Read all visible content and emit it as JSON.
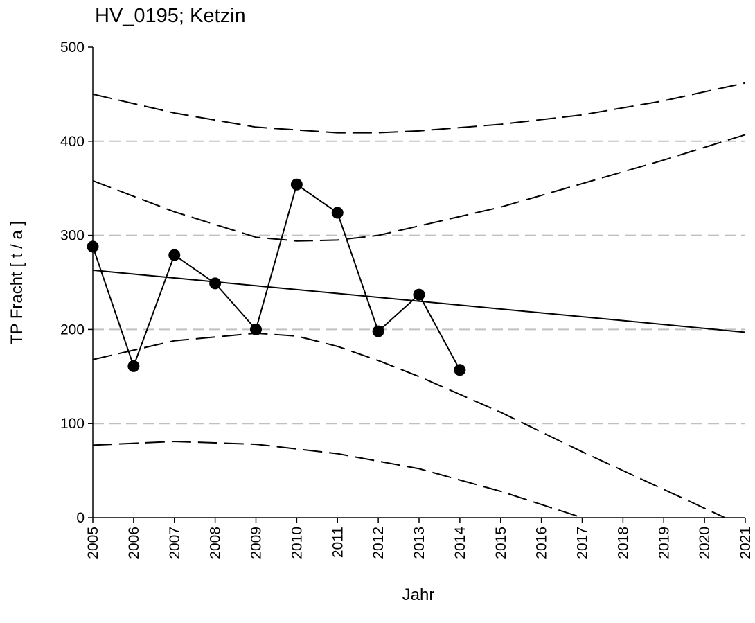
{
  "chart_data": {
    "type": "line",
    "title": "HV_0195; Ketzin",
    "x_label": "Jahr",
    "y_label": "TP Fracht [ t / a ]",
    "xlim": [
      2005,
      2021
    ],
    "ylim": [
      0,
      500
    ],
    "xticks": [
      2005,
      2006,
      2007,
      2008,
      2009,
      2010,
      2011,
      2012,
      2013,
      2014,
      2015,
      2016,
      2017,
      2018,
      2019,
      2020,
      2021
    ],
    "yticks": [
      0,
      100,
      200,
      300,
      400,
      500
    ],
    "grid": true,
    "grid_color": "#c0c0c0",
    "series": [
      {
        "x": [
          2005,
          2006,
          2007,
          2008,
          2009,
          2010,
          2011,
          2012,
          2013,
          2014
        ],
        "values": [
          288,
          161,
          279,
          249,
          200,
          354,
          324,
          198,
          237,
          157
        ],
        "color": "#000000",
        "style": "solid",
        "marker": true
      },
      {
        "x": [
          2005,
          2021
        ],
        "values": [
          263,
          197
        ],
        "color": "#000000",
        "style": "solid",
        "marker": false
      },
      {
        "x": [
          2005,
          2007,
          2009,
          2010,
          2011,
          2012,
          2013,
          2015,
          2017,
          2019,
          2021
        ],
        "values": [
          358,
          325,
          298,
          294,
          295,
          300,
          310,
          330,
          355,
          380,
          407
        ],
        "color": "#000000",
        "style": "dashed",
        "marker": false
      },
      {
        "x": [
          2005,
          2007,
          2009,
          2010,
          2011,
          2012,
          2013,
          2015,
          2017,
          2019,
          2020.5
        ],
        "values": [
          168,
          188,
          196,
          193,
          182,
          167,
          150,
          112,
          70,
          30,
          0
        ],
        "color": "#000000",
        "style": "dashed",
        "marker": false
      },
      {
        "x": [
          2005,
          2007,
          2009,
          2011,
          2012,
          2013,
          2015,
          2017,
          2019,
          2021
        ],
        "values": [
          450,
          430,
          415,
          409,
          409,
          411,
          418,
          428,
          443,
          462
        ],
        "color": "#000000",
        "style": "dashed",
        "marker": false
      },
      {
        "x": [
          2005,
          2007,
          2009,
          2011,
          2013,
          2015,
          2017
        ],
        "values": [
          77,
          81,
          78,
          68,
          52,
          28,
          0
        ],
        "color": "#000000",
        "style": "dashed",
        "marker": false
      }
    ]
  }
}
